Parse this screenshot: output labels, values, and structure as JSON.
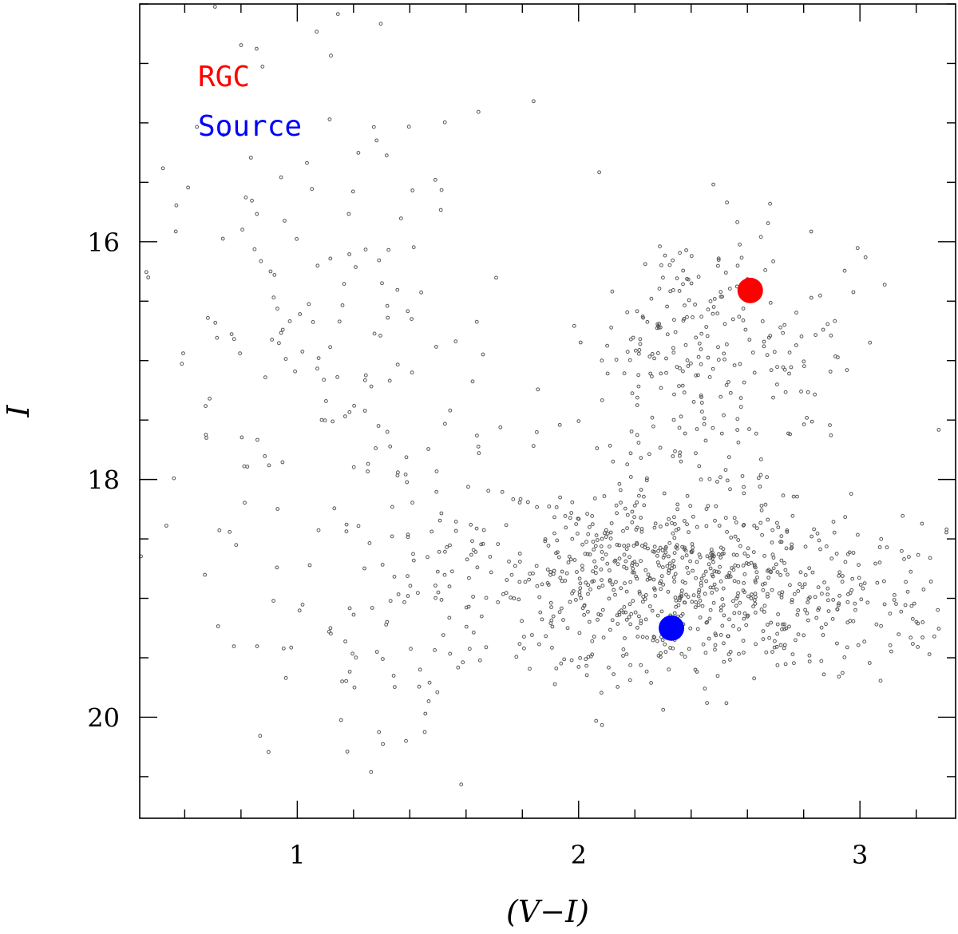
{
  "chart_data": {
    "type": "scatter",
    "title": "",
    "xlabel": "(V−I)",
    "ylabel": "I",
    "xlim": [
      0.44,
      3.34
    ],
    "ylim": [
      20.85,
      14.0
    ],
    "y_inverted": true,
    "grid": false,
    "legend_placement": "top-left",
    "x_ticks": [
      1,
      2,
      3
    ],
    "y_ticks": [
      16,
      18,
      20
    ],
    "x_minor_step": 0.2,
    "y_minor_step": 0.5,
    "colors": {
      "field_stars": "#555555",
      "rgc": "#ff0000",
      "source": "#0000ff"
    },
    "series": [
      {
        "name": "RGC",
        "marker": "filled-circle",
        "color": "#ff0000",
        "points": [
          [
            2.61,
            16.41
          ]
        ]
      },
      {
        "name": "Source",
        "marker": "filled-circle",
        "color": "#0000ff",
        "points": [
          [
            2.33,
            19.25
          ]
        ]
      }
    ],
    "field_stars": {
      "marker": "open-circle",
      "color": "#555555",
      "approx_count": 1400,
      "density_groups": [
        {
          "weight": 0.18,
          "center_x": 2.5,
          "center_y": 16.9,
          "sigma_x": 0.22,
          "sigma_y": 0.55
        },
        {
          "weight": 0.42,
          "center_x": 2.25,
          "center_y": 18.8,
          "sigma_x": 0.32,
          "sigma_y": 0.45
        },
        {
          "weight": 0.2,
          "center_x": 2.75,
          "center_y": 19.0,
          "sigma_x": 0.3,
          "sigma_y": 0.35
        },
        {
          "weight": 0.1,
          "center_x": 1.4,
          "center_y": 18.7,
          "sigma_x": 0.35,
          "sigma_y": 1.1
        },
        {
          "weight": 0.1,
          "center_x": 1.0,
          "center_y": 16.3,
          "sigma_x": 0.35,
          "sigma_y": 1.4
        }
      ]
    }
  }
}
